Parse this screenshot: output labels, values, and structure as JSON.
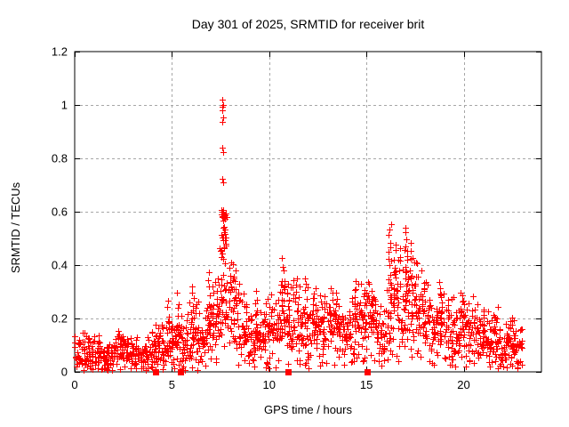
{
  "figure": {
    "background": "#ffffff",
    "border_color": "#000000",
    "grid_color": "#a6a6a6",
    "text_color": "#000000"
  },
  "chart_data": {
    "type": "scatter",
    "title": "Day 301 of 2025, SRMTID for receiver brit",
    "xlabel": "GPS time / hours",
    "ylabel": "SRMTID / TECUs",
    "xlim": [
      0,
      24
    ],
    "ylim": [
      0,
      1.2
    ],
    "xticks": [
      0,
      5,
      10,
      15,
      20
    ],
    "xtick_labels": [
      "0",
      "5",
      "10",
      "15",
      "20"
    ],
    "yticks": [
      0,
      0.2,
      0.4,
      0.6,
      0.8,
      1,
      1.2
    ],
    "ytick_labels": [
      "0",
      "0.2",
      "0.4",
      "0.6",
      "0.8",
      "1",
      "1.2"
    ],
    "grid": true,
    "legend": "none",
    "marker": "plus",
    "marker_color": "#ff0000",
    "series_name": "SRMTID",
    "data_start_hour": 0.0,
    "data_end_hour": 23.0,
    "seed": 12345,
    "points_per_bin": 18,
    "band_width_factor": 1.8,
    "profile": [
      [
        0.0,
        0.07,
        0.045
      ],
      [
        0.25,
        0.08,
        0.05
      ],
      [
        0.5,
        0.07,
        0.045
      ],
      [
        0.75,
        0.065,
        0.04
      ],
      [
        1.0,
        0.07,
        0.045
      ],
      [
        1.25,
        0.055,
        0.04
      ],
      [
        1.5,
        0.05,
        0.035
      ],
      [
        1.75,
        0.06,
        0.04
      ],
      [
        2.0,
        0.075,
        0.05
      ],
      [
        2.25,
        0.09,
        0.05
      ],
      [
        2.5,
        0.075,
        0.045
      ],
      [
        2.75,
        0.06,
        0.04
      ],
      [
        3.0,
        0.065,
        0.04
      ],
      [
        3.25,
        0.055,
        0.04
      ],
      [
        3.5,
        0.06,
        0.045
      ],
      [
        3.75,
        0.08,
        0.055
      ],
      [
        4.0,
        0.1,
        0.06
      ],
      [
        4.25,
        0.11,
        0.065
      ],
      [
        4.5,
        0.08,
        0.05
      ],
      [
        4.75,
        0.1,
        0.07
      ],
      [
        5.0,
        0.11,
        0.07
      ],
      [
        5.25,
        0.12,
        0.07
      ],
      [
        5.5,
        0.1,
        0.06
      ],
      [
        5.75,
        0.13,
        0.08
      ],
      [
        6.0,
        0.16,
        0.09
      ],
      [
        6.25,
        0.13,
        0.08
      ],
      [
        6.5,
        0.11,
        0.07
      ],
      [
        6.75,
        0.14,
        0.08
      ],
      [
        7.0,
        0.18,
        0.1
      ],
      [
        7.25,
        0.19,
        0.1
      ],
      [
        7.5,
        0.24,
        0.12
      ],
      [
        7.75,
        0.26,
        0.13
      ],
      [
        8.0,
        0.22,
        0.11
      ],
      [
        8.25,
        0.2,
        0.11
      ],
      [
        8.5,
        0.16,
        0.09
      ],
      [
        8.75,
        0.14,
        0.08
      ],
      [
        9.0,
        0.13,
        0.075
      ],
      [
        9.25,
        0.12,
        0.07
      ],
      [
        9.5,
        0.14,
        0.08
      ],
      [
        9.75,
        0.15,
        0.085
      ],
      [
        10.0,
        0.15,
        0.085
      ],
      [
        10.25,
        0.16,
        0.09
      ],
      [
        10.5,
        0.18,
        0.1
      ],
      [
        10.75,
        0.21,
        0.12
      ],
      [
        11.0,
        0.19,
        0.11
      ],
      [
        11.25,
        0.18,
        0.1
      ],
      [
        11.5,
        0.17,
        0.1
      ],
      [
        11.75,
        0.16,
        0.095
      ],
      [
        12.0,
        0.16,
        0.09
      ],
      [
        12.25,
        0.18,
        0.1
      ],
      [
        12.5,
        0.17,
        0.095
      ],
      [
        12.75,
        0.15,
        0.085
      ],
      [
        13.0,
        0.16,
        0.09
      ],
      [
        13.25,
        0.17,
        0.095
      ],
      [
        13.5,
        0.15,
        0.09
      ],
      [
        13.75,
        0.13,
        0.08
      ],
      [
        14.0,
        0.15,
        0.085
      ],
      [
        14.25,
        0.17,
        0.095
      ],
      [
        14.5,
        0.19,
        0.105
      ],
      [
        14.75,
        0.18,
        0.1
      ],
      [
        15.0,
        0.19,
        0.105
      ],
      [
        15.25,
        0.17,
        0.1
      ],
      [
        15.5,
        0.14,
        0.085
      ],
      [
        15.75,
        0.12,
        0.075
      ],
      [
        16.0,
        0.2,
        0.115
      ],
      [
        16.25,
        0.28,
        0.15
      ],
      [
        16.5,
        0.25,
        0.13
      ],
      [
        16.75,
        0.23,
        0.125
      ],
      [
        17.0,
        0.28,
        0.145
      ],
      [
        17.25,
        0.26,
        0.135
      ],
      [
        17.5,
        0.23,
        0.125
      ],
      [
        17.75,
        0.21,
        0.115
      ],
      [
        18.0,
        0.19,
        0.11
      ],
      [
        18.25,
        0.14,
        0.085
      ],
      [
        18.5,
        0.13,
        0.08
      ],
      [
        18.75,
        0.18,
        0.1
      ],
      [
        19.0,
        0.17,
        0.095
      ],
      [
        19.25,
        0.14,
        0.085
      ],
      [
        19.5,
        0.14,
        0.08
      ],
      [
        19.75,
        0.16,
        0.09
      ],
      [
        20.0,
        0.17,
        0.095
      ],
      [
        20.25,
        0.15,
        0.09
      ],
      [
        20.5,
        0.13,
        0.08
      ],
      [
        20.75,
        0.12,
        0.075
      ],
      [
        21.0,
        0.13,
        0.08
      ],
      [
        21.25,
        0.11,
        0.07
      ],
      [
        21.5,
        0.12,
        0.07
      ],
      [
        21.75,
        0.1,
        0.065
      ],
      [
        22.0,
        0.09,
        0.06
      ],
      [
        22.25,
        0.1,
        0.06
      ],
      [
        22.5,
        0.1,
        0.065
      ],
      [
        22.75,
        0.09,
        0.06
      ]
    ],
    "streaks": [
      [
        4.8,
        0.28,
        6
      ],
      [
        5.3,
        0.3,
        6
      ],
      [
        6.05,
        0.33,
        8
      ],
      [
        6.9,
        0.38,
        8
      ],
      [
        7.3,
        0.37,
        8
      ],
      [
        8.2,
        0.4,
        8
      ],
      [
        9.35,
        0.32,
        6
      ],
      [
        9.9,
        0.3,
        5
      ],
      [
        10.7,
        0.43,
        10
      ],
      [
        11.0,
        0.35,
        6
      ],
      [
        11.85,
        0.37,
        7
      ],
      [
        12.35,
        0.31,
        5
      ],
      [
        13.45,
        0.32,
        6
      ],
      [
        14.45,
        0.35,
        7
      ],
      [
        14.9,
        0.3,
        5
      ],
      [
        15.35,
        0.3,
        5
      ],
      [
        16.2,
        0.56,
        14
      ],
      [
        16.45,
        0.5,
        8
      ],
      [
        17.05,
        0.55,
        14
      ],
      [
        17.3,
        0.47,
        8
      ],
      [
        17.55,
        0.42,
        6
      ],
      [
        18.0,
        0.36,
        5
      ],
      [
        18.85,
        0.33,
        8
      ],
      [
        19.9,
        0.31,
        6
      ],
      [
        21.0,
        0.24,
        5
      ],
      [
        21.6,
        0.22,
        4
      ],
      [
        22.55,
        0.21,
        4
      ]
    ],
    "spike_cluster": {
      "x0": 7.45,
      "x1": 7.85,
      "y0": 0.4,
      "y1": 0.62,
      "n": 40
    },
    "spike_points": [
      [
        7.6,
        1.02
      ],
      [
        7.62,
        1.0
      ],
      [
        7.61,
        0.995
      ],
      [
        7.6,
        0.98
      ],
      [
        7.63,
        0.955
      ],
      [
        7.58,
        0.935
      ],
      [
        7.6,
        0.84
      ],
      [
        7.63,
        0.825
      ],
      [
        7.59,
        0.725
      ],
      [
        7.63,
        0.71
      ]
    ],
    "zero_markers": {
      "marker": "square",
      "color": "#ff0000",
      "x": [
        4.17,
        5.43,
        10.97,
        15.03
      ]
    }
  }
}
